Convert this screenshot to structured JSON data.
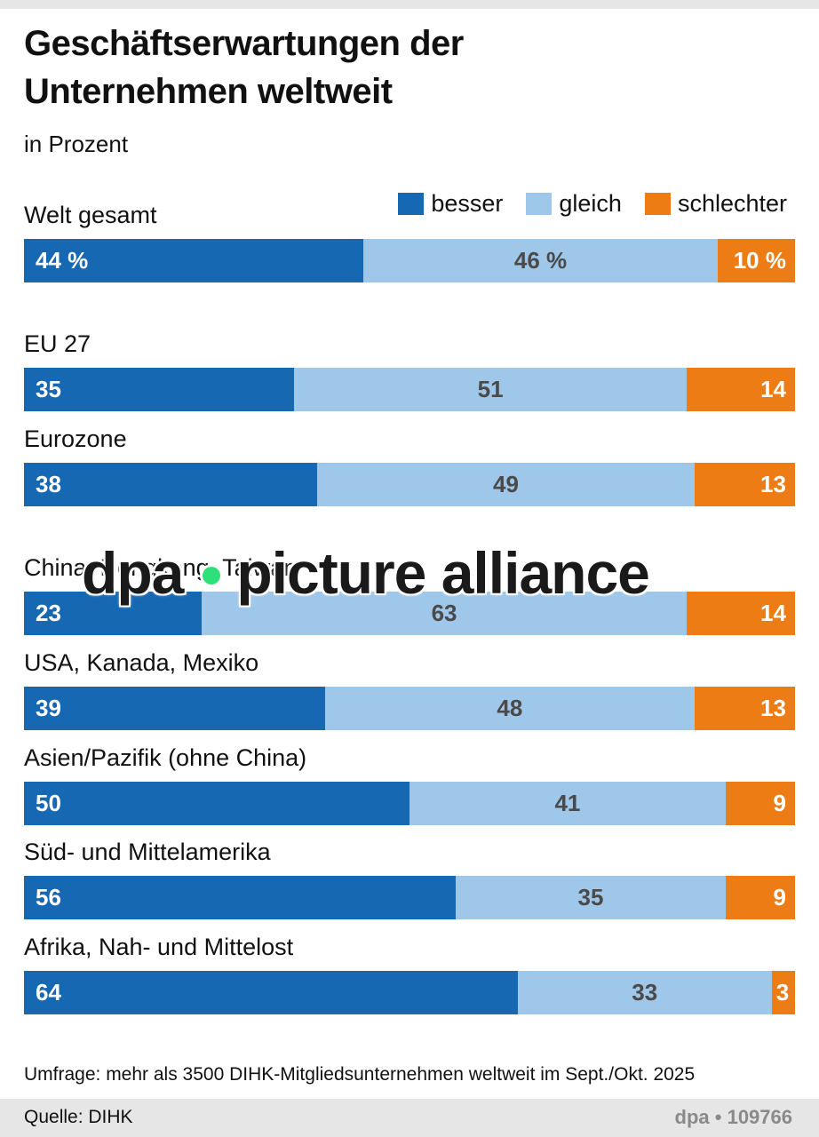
{
  "title_line1": "Geschäftserwartungen der",
  "title_line2": "Unternehmen weltweit",
  "subtitle": "in Prozent",
  "legend": {
    "besser": "besser",
    "gleich": "gleich",
    "schlechter": "schlechter"
  },
  "colors": {
    "besser": "#1768b3",
    "gleich": "#9fc7ea",
    "schlechter": "#ee7c14"
  },
  "chart_data": {
    "type": "bar",
    "stacked": true,
    "orientation": "horizontal",
    "title": "Geschäftserwartungen der Unternehmen weltweit",
    "unit": "in Prozent",
    "series_names": [
      "besser",
      "gleich",
      "schlechter"
    ],
    "rows": [
      {
        "label": "Welt gesamt",
        "besser": 44,
        "gleich": 46,
        "schlechter": 10,
        "labels": [
          "44 %",
          "46 %",
          "10 %"
        ]
      },
      {
        "label": "EU 27",
        "besser": 35,
        "gleich": 51,
        "schlechter": 14,
        "labels": [
          "35",
          "51",
          "14"
        ]
      },
      {
        "label": "Eurozone",
        "besser": 38,
        "gleich": 49,
        "schlechter": 13,
        "labels": [
          "38",
          "49",
          "13"
        ]
      },
      {
        "label": "China, Hongkong, Taiwan",
        "besser": 23,
        "gleich": 63,
        "schlechter": 14,
        "labels": [
          "23",
          "63",
          "14"
        ]
      },
      {
        "label": "USA, Kanada, Mexiko",
        "besser": 39,
        "gleich": 48,
        "schlechter": 13,
        "labels": [
          "39",
          "48",
          "13"
        ]
      },
      {
        "label": "Asien/Pazifik (ohne China)",
        "besser": 50,
        "gleich": 41,
        "schlechter": 9,
        "labels": [
          "50",
          "41",
          "9"
        ]
      },
      {
        "label": "Süd- und Mittelamerika",
        "besser": 56,
        "gleich": 35,
        "schlechter": 9,
        "labels": [
          "56",
          "35",
          "9"
        ]
      },
      {
        "label": "Afrika, Nah- und Mittelost",
        "besser": 64,
        "gleich": 33,
        "schlechter": 3,
        "labels": [
          "64",
          "33",
          "3"
        ]
      }
    ]
  },
  "footnote": "Umfrage: mehr als 3500 DIHK-Mitgliedsunternehmen weltweit im Sept./Okt. 2025",
  "source": "Quelle:  DIHK",
  "agency": "dpa • 109766",
  "watermark": {
    "left": "dpa",
    "right": "picture alliance"
  }
}
